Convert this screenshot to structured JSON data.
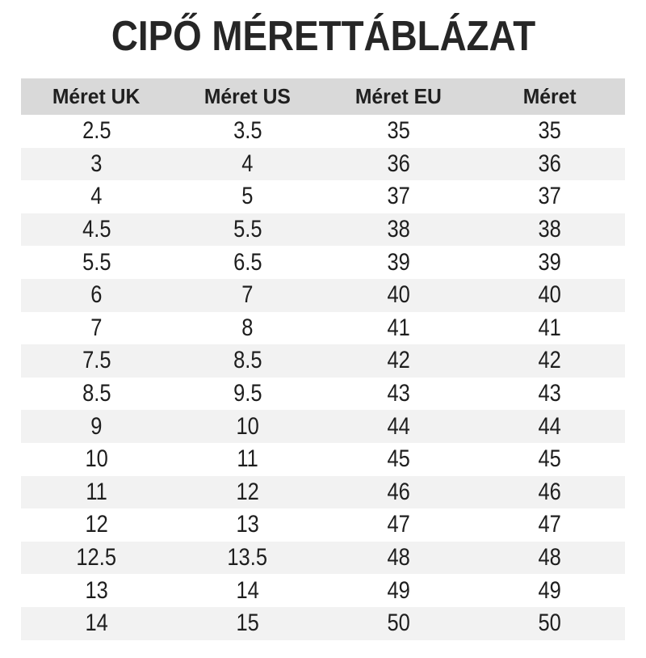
{
  "title": "CIPŐ MÉRETTÁBLÁZAT",
  "chart_data": {
    "type": "table",
    "title": "CIPŐ MÉRETTÁBLÁZAT",
    "columns": [
      "Méret UK",
      "Méret US",
      "Méret EU",
      "Méret"
    ],
    "rows": [
      [
        "2.5",
        "3.5",
        "35",
        "35"
      ],
      [
        "3",
        "4",
        "36",
        "36"
      ],
      [
        "4",
        "5",
        "37",
        "37"
      ],
      [
        "4.5",
        "5.5",
        "38",
        "38"
      ],
      [
        "5.5",
        "6.5",
        "39",
        "39"
      ],
      [
        "6",
        "7",
        "40",
        "40"
      ],
      [
        "7",
        "8",
        "41",
        "41"
      ],
      [
        "7.5",
        "8.5",
        "42",
        "42"
      ],
      [
        "8.5",
        "9.5",
        "43",
        "43"
      ],
      [
        "9",
        "10",
        "44",
        "44"
      ],
      [
        "10",
        "11",
        "45",
        "45"
      ],
      [
        "11",
        "12",
        "46",
        "46"
      ],
      [
        "12",
        "13",
        "47",
        "47"
      ],
      [
        "12.5",
        "13.5",
        "48",
        "48"
      ],
      [
        "13",
        "14",
        "49",
        "49"
      ],
      [
        "14",
        "15",
        "50",
        "50"
      ]
    ],
    "layout": {
      "header_position": "top",
      "zebra_striping": true,
      "first_data_row_background": "white",
      "grid_lines": false
    }
  },
  "colors": {
    "background": "#ffffff",
    "header_bg": "#d9d9d9",
    "stripe_bg": "#f2f2f2",
    "title_text": "#262626",
    "cell_text": "#1e1e1e"
  }
}
